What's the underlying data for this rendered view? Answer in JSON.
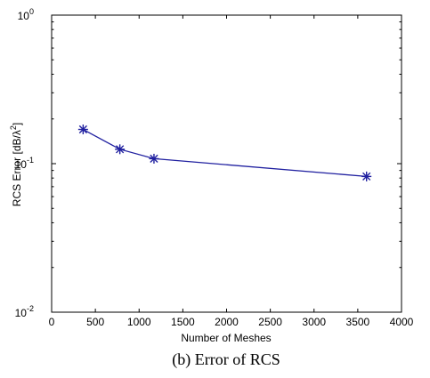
{
  "chart_data": {
    "type": "line",
    "title": "",
    "xlabel": "Number of Meshes",
    "ylabel_main": "RCS Error [dB/",
    "ylabel_lambda": "λ",
    "ylabel_exp": "2",
    "ylabel_end": "]",
    "xlim": [
      0,
      4000
    ],
    "ylim": [
      0.01,
      1
    ],
    "yscale": "log",
    "x_ticks": [
      0,
      500,
      1000,
      1500,
      2000,
      2500,
      3000,
      3500,
      4000
    ],
    "y_ticks": [
      {
        "value": 0.01,
        "base": "10",
        "exp": "-2"
      },
      {
        "value": 0.1,
        "base": "10",
        "exp": "-1"
      },
      {
        "value": 1,
        "base": "10",
        "exp": "0"
      }
    ],
    "grid": false,
    "series": [
      {
        "marker": "asterisk",
        "color": "#2020a0",
        "x": [
          360,
          780,
          1170,
          3600
        ],
        "y": [
          0.17,
          0.125,
          0.108,
          0.082
        ]
      }
    ]
  },
  "caption": "(b) Error of RCS"
}
